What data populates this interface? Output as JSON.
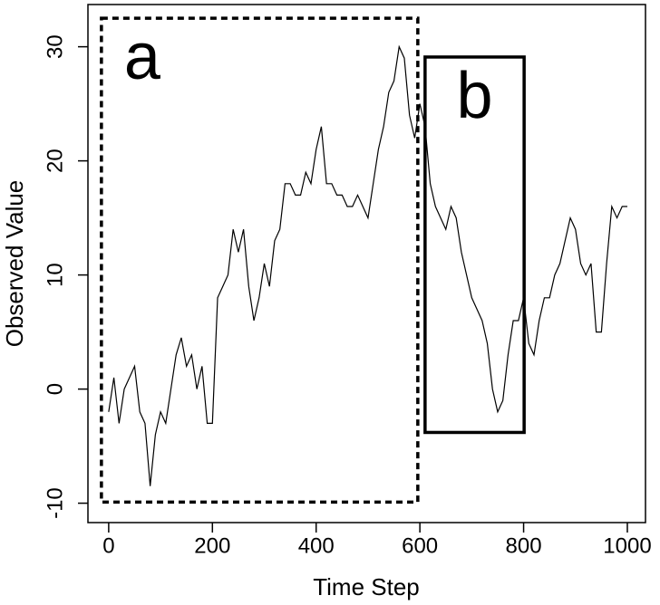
{
  "chart_data": {
    "type": "line",
    "x_label": "Time Step",
    "y_label": "Observed Value",
    "x": [
      0,
      10,
      20,
      30,
      40,
      50,
      60,
      70,
      80,
      90,
      100,
      110,
      120,
      130,
      140,
      150,
      160,
      170,
      180,
      190,
      200,
      210,
      220,
      230,
      240,
      250,
      260,
      270,
      280,
      290,
      300,
      310,
      320,
      330,
      340,
      350,
      360,
      370,
      380,
      390,
      400,
      410,
      420,
      430,
      440,
      450,
      460,
      470,
      480,
      490,
      500,
      510,
      520,
      530,
      540,
      550,
      560,
      570,
      580,
      590,
      600,
      610,
      620,
      630,
      640,
      650,
      660,
      670,
      680,
      690,
      700,
      710,
      720,
      730,
      740,
      750,
      760,
      770,
      780,
      790,
      800,
      810,
      820,
      830,
      840,
      850,
      860,
      870,
      880,
      890,
      900,
      910,
      920,
      930,
      940,
      950,
      960,
      970,
      980,
      990,
      1000
    ],
    "series": [
      {
        "color": "#000000",
        "values": [
          -2,
          1,
          -3,
          0,
          1,
          2,
          -2,
          -3,
          -8.5,
          -4,
          -2,
          -3,
          0,
          3,
          4.5,
          2,
          3,
          0,
          2,
          -3,
          -3,
          8,
          9,
          10,
          14,
          12,
          14,
          9,
          6,
          8,
          11,
          9,
          13,
          14,
          18,
          18,
          17,
          17,
          19,
          18,
          21,
          23,
          18,
          18,
          17,
          17,
          16,
          16,
          17,
          16,
          15,
          18,
          21,
          23,
          26,
          27,
          30,
          29,
          24,
          22,
          25,
          23,
          18,
          16,
          15,
          14,
          16,
          15,
          12,
          10,
          8,
          7,
          6,
          4,
          0,
          -2,
          -1,
          3,
          6,
          6,
          8,
          4,
          3,
          6,
          8,
          8,
          10,
          11,
          13,
          15,
          14,
          11,
          10,
          11,
          5,
          5,
          11,
          16,
          15,
          16,
          16
        ]
      }
    ],
    "xlim": [
      -40,
      1035
    ],
    "ylim": [
      -11.7,
      33.7
    ],
    "xticks": [
      0,
      200,
      400,
      600,
      800,
      1000
    ],
    "yticks": [
      -10,
      0,
      10,
      20,
      30
    ],
    "annotations": [
      {
        "label": "a",
        "style": "dashed",
        "x": [
          -14,
          596
        ],
        "y": [
          -9.9,
          32.5
        ]
      },
      {
        "label": "b",
        "style": "solid",
        "x": [
          610,
          801
        ],
        "y": [
          -3.8,
          29.1
        ]
      }
    ]
  }
}
